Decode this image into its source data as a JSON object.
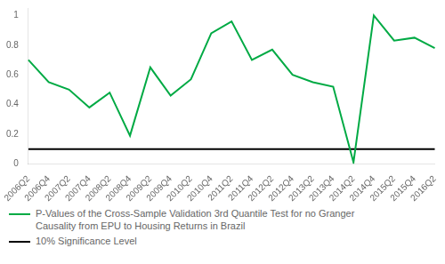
{
  "chart_data": {
    "type": "line",
    "categories": [
      "2006Q2",
      "2006Q4",
      "2007Q2",
      "2007Q4",
      "2008Q2",
      "2008Q4",
      "2009Q2",
      "2009Q4",
      "2010Q2",
      "2010Q4",
      "2011Q2",
      "2011Q4",
      "2012Q2",
      "2012Q4",
      "2013Q2",
      "2013Q4",
      "2014Q2",
      "2014Q4",
      "2015Q2",
      "2015Q4",
      "2016Q2"
    ],
    "series": [
      {
        "name": "P-Values of the Cross-Sample Validation 3rd Quantile Test for no Granger\nCausality from EPU to Housing Returns in Brazil",
        "color": "#00aa44",
        "values": [
          0.7,
          0.55,
          0.5,
          0.38,
          0.48,
          0.19,
          0.65,
          0.46,
          0.57,
          0.88,
          0.96,
          0.7,
          0.77,
          0.6,
          0.55,
          0.52,
          0.01,
          1.0,
          0.83,
          0.85,
          0.78
        ]
      },
      {
        "name": "10% Significance Level",
        "color": "#000000",
        "values": [
          0.1,
          0.1,
          0.1,
          0.1,
          0.1,
          0.1,
          0.1,
          0.1,
          0.1,
          0.1,
          0.1,
          0.1,
          0.1,
          0.1,
          0.1,
          0.1,
          0.1,
          0.1,
          0.1,
          0.1,
          0.1
        ]
      }
    ],
    "ylim": [
      0,
      1.05
    ],
    "yticks": [
      0,
      0.2,
      0.4,
      0.6,
      0.8,
      1
    ],
    "grid": false,
    "legend": "bottom"
  }
}
